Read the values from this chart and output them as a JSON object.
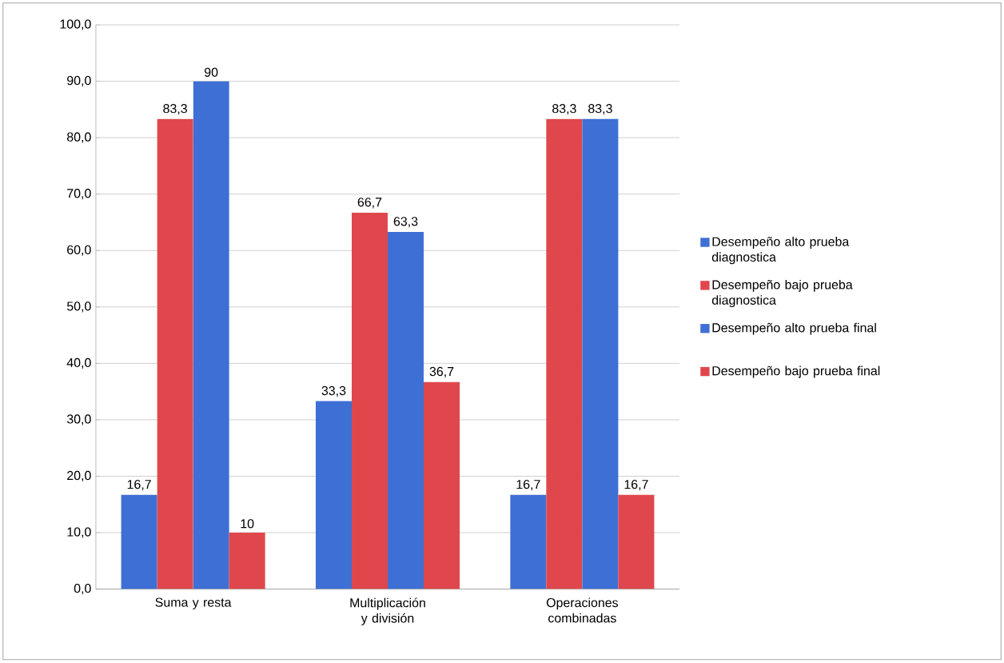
{
  "chart_data": {
    "type": "bar",
    "categories": [
      "Suma y resta",
      "Multiplicación y división",
      "Operaciones combinadas"
    ],
    "series": [
      {
        "name": "Desempeño alto prueba diagnostica",
        "color": "#3e6fd4",
        "values": [
          16.7,
          33.3,
          16.7
        ],
        "value_labels": [
          "16,7",
          "33,3",
          "16,7"
        ]
      },
      {
        "name": "Desempeño bajo prueba diagnostica",
        "color": "#e0474c",
        "values": [
          83.3,
          66.7,
          83.3
        ],
        "value_labels": [
          "83,3",
          "66,7",
          "83,3"
        ]
      },
      {
        "name": "Desempeño alto prueba final",
        "color": "#3e6fd4",
        "values": [
          90,
          63.3,
          83.3
        ],
        "value_labels": [
          "90",
          "63,3",
          "83,3"
        ]
      },
      {
        "name": "Desempeño bajo prueba final",
        "color": "#e0474c",
        "values": [
          10,
          36.7,
          16.7
        ],
        "value_labels": [
          "10",
          "36,7",
          "16,7"
        ]
      }
    ],
    "ylim": [
      0,
      100
    ],
    "yticks": [
      {
        "value": 0,
        "label": "0,0"
      },
      {
        "value": 10,
        "label": "10,0"
      },
      {
        "value": 20,
        "label": "20,0"
      },
      {
        "value": 30,
        "label": "30,0"
      },
      {
        "value": 40,
        "label": "40,0"
      },
      {
        "value": 50,
        "label": "50,0"
      },
      {
        "value": 60,
        "label": "60,0"
      },
      {
        "value": 70,
        "label": "70,0"
      },
      {
        "value": 80,
        "label": "80,0"
      },
      {
        "value": 90,
        "label": "90,0"
      },
      {
        "value": 100,
        "label": "100,0"
      }
    ],
    "grid": "y",
    "legend": "right"
  }
}
